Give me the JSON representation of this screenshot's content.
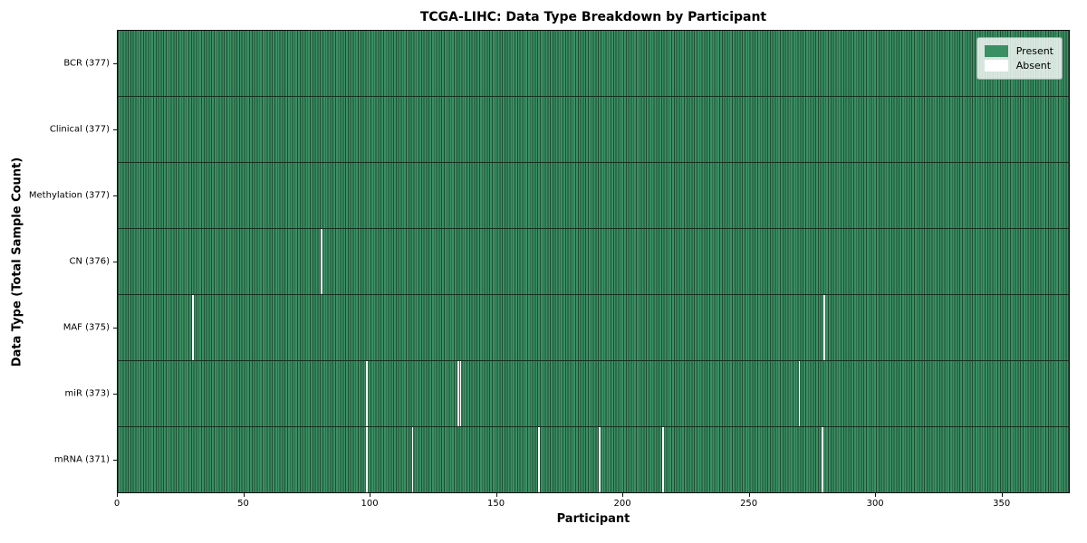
{
  "chart_data": {
    "type": "heatmap",
    "title": "TCGA-LIHC: Data Type Breakdown by Participant",
    "xlabel": "Participant",
    "ylabel": "Data Type (Total Sample Count)",
    "x_range": [
      0,
      377
    ],
    "n_participants": 377,
    "xticks": [
      0,
      50,
      100,
      150,
      200,
      250,
      300,
      350
    ],
    "grid": "cell-edges",
    "legend_position": "upper right",
    "legend": [
      {
        "label": "Present",
        "color": "#3a9063"
      },
      {
        "label": "Absent",
        "color": "#ffffff"
      }
    ],
    "colors": {
      "present": "#3a9063",
      "absent": "#ffffff",
      "cell_edge": "#204d34",
      "row_border": "#15301f",
      "spine": "#111111"
    },
    "rows": [
      {
        "tick_label": "BCR (377)",
        "name": "BCR",
        "total": 377,
        "absent_participants": []
      },
      {
        "tick_label": "Clinical (377)",
        "name": "Clinical",
        "total": 377,
        "absent_participants": []
      },
      {
        "tick_label": "Methylation (377)",
        "name": "Methylation",
        "total": 377,
        "absent_participants": []
      },
      {
        "tick_label": "CN (376)",
        "name": "CN",
        "total": 376,
        "absent_participants": [
          80
        ]
      },
      {
        "tick_label": "MAF (375)",
        "name": "MAF",
        "total": 375,
        "absent_participants": [
          29,
          279
        ]
      },
      {
        "tick_label": "miR (373)",
        "name": "miR",
        "total": 373,
        "absent_participants": [
          98,
          134,
          135,
          269
        ]
      },
      {
        "tick_label": "mRNA (371)",
        "name": "mRNA",
        "total": 371,
        "absent_participants": [
          98,
          116,
          166,
          190,
          215,
          278
        ]
      }
    ]
  }
}
